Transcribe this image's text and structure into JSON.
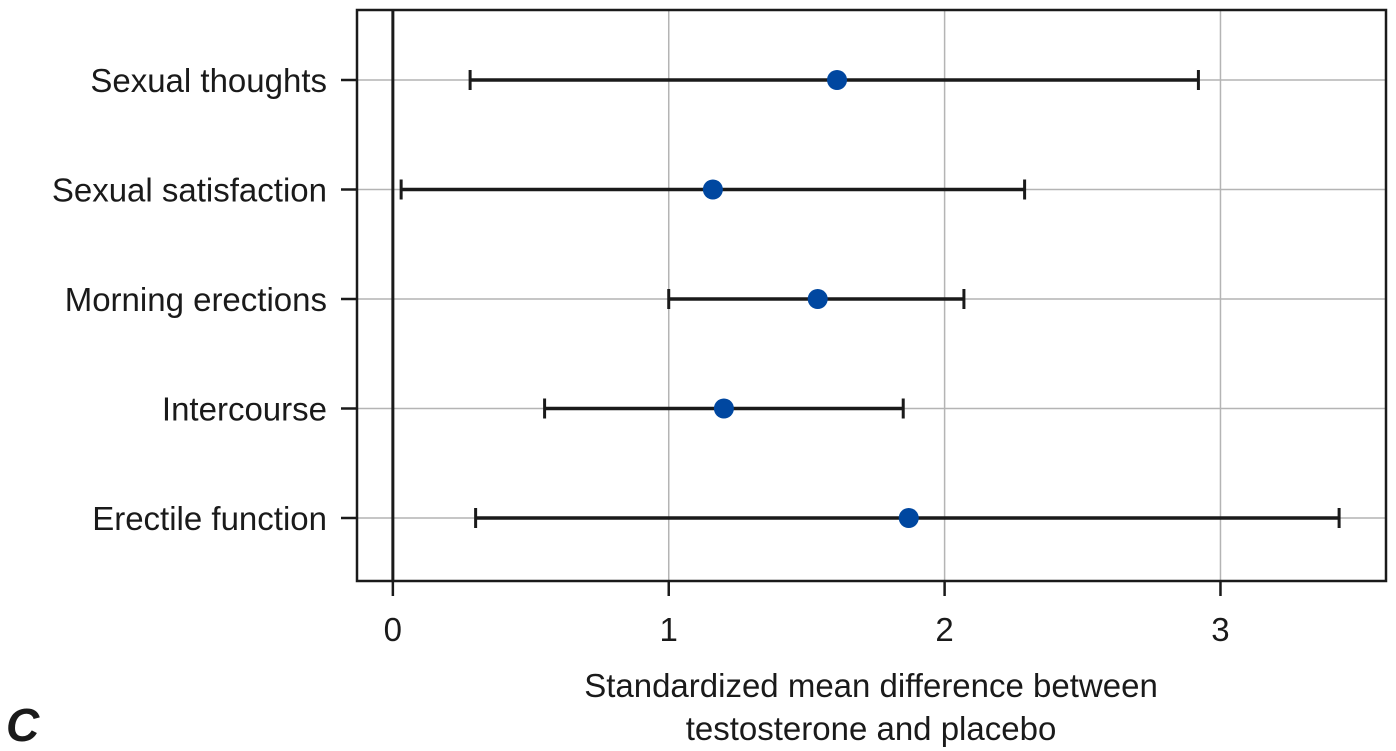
{
  "panel_label": "C",
  "chart_data": {
    "type": "forest",
    "categories": [
      "Sexual thoughts",
      "Sexual satisfaction",
      "Morning erections",
      "Intercourse",
      "Erectile function"
    ],
    "estimates": [
      1.61,
      1.16,
      1.54,
      1.2,
      1.87
    ],
    "ci_lower": [
      0.28,
      0.03,
      1.0,
      0.55,
      0.3
    ],
    "ci_upper": [
      2.92,
      2.29,
      2.07,
      1.85,
      3.43
    ],
    "xlabel_line1": "Standardized mean difference between",
    "xlabel_line2": "testosterone and placebo",
    "xlim": [
      -0.13,
      3.6
    ],
    "xticks": [
      0,
      1,
      2,
      3
    ],
    "xtick_labels": [
      "0",
      "1",
      "2",
      "3"
    ],
    "reference_line": 0,
    "grid": true,
    "point_color": "#0047a0",
    "line_color": "#1a1a1a",
    "grid_color": "#b4b4b4"
  }
}
